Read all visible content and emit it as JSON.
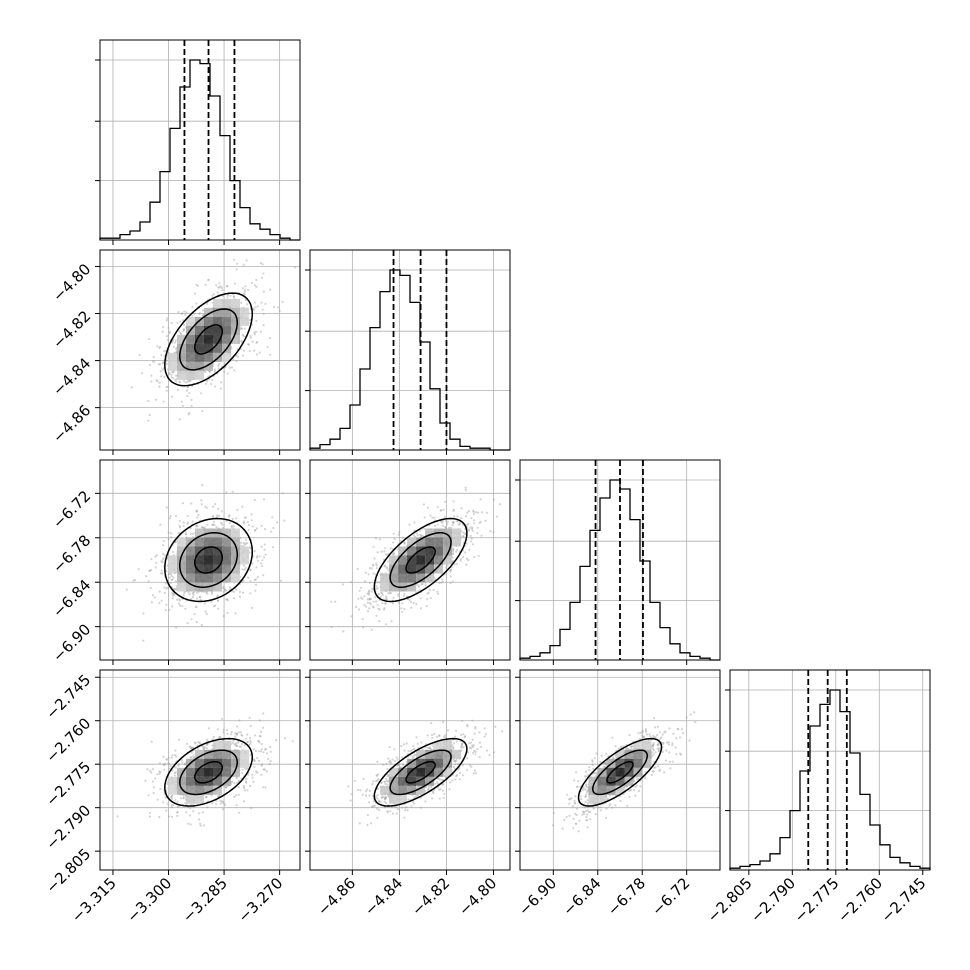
{
  "chart_data": {
    "type": "corner",
    "parameters": [
      {
        "index": 0,
        "range": [
          -3.3185,
          -3.2645
        ],
        "ticks": [
          "−3.315",
          "−3.300",
          "−3.285",
          "−3.270"
        ],
        "tick_values": [
          -3.315,
          -3.3,
          -3.285,
          -3.27
        ],
        "quantiles": [
          -3.2957,
          -3.2892,
          -3.2822
        ],
        "hist_counts": [
          1,
          1,
          3,
          5,
          10,
          21,
          38,
          62,
          85,
          100,
          98,
          80,
          58,
          33,
          18,
          9,
          6,
          3,
          1,
          0
        ]
      },
      {
        "index": 1,
        "range": [
          -4.878,
          -4.793
        ],
        "ticks": [
          "−4.86",
          "−4.84",
          "−4.82",
          "−4.80"
        ],
        "tick_values": [
          -4.86,
          -4.84,
          -4.82,
          -4.8
        ],
        "quantiles": [
          -4.8425,
          -4.831,
          -4.82
        ],
        "hist_counts": [
          1,
          3,
          6,
          12,
          25,
          45,
          68,
          88,
          100,
          97,
          82,
          60,
          34,
          15,
          6,
          2,
          1,
          1,
          0,
          0
        ]
      },
      {
        "index": 2,
        "range": [
          -6.945,
          -6.675
        ],
        "ticks": [
          "−6.90",
          "−6.84",
          "−6.78",
          "−6.72"
        ],
        "tick_values": [
          -6.9,
          -6.84,
          -6.78,
          -6.72
        ],
        "quantiles": [
          -6.843,
          -6.81,
          -6.779
        ],
        "hist_counts": [
          1,
          2,
          4,
          8,
          17,
          32,
          52,
          72,
          90,
          100,
          95,
          78,
          55,
          32,
          18,
          9,
          4,
          2,
          1,
          0
        ]
      },
      {
        "index": 3,
        "range": [
          -2.8115,
          -2.7425
        ],
        "ticks": [
          "−2.805",
          "−2.790",
          "−2.775",
          "−2.760",
          "−2.745"
        ],
        "tick_values": [
          -2.805,
          -2.79,
          -2.775,
          -2.76,
          -2.745
        ],
        "quantiles": [
          -2.7845,
          -2.7778,
          -2.7712
        ],
        "hist_counts": [
          1,
          2,
          3,
          5,
          9,
          18,
          33,
          55,
          80,
          92,
          100,
          88,
          65,
          42,
          25,
          14,
          7,
          4,
          2,
          1
        ]
      }
    ],
    "correlations": {
      "1-0": 0.55,
      "2-0": 0.2,
      "2-1": 0.65,
      "3-0": 0.45,
      "3-1": 0.7,
      "3-2": 0.75
    },
    "grid": true,
    "line_style": "dashed quantile lines",
    "colors": {
      "contour": "#000000",
      "scatter": "#9e9e9e",
      "grid": "#b0b0b0"
    }
  }
}
